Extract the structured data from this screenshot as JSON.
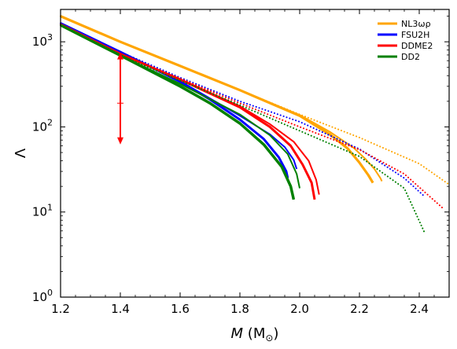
{
  "chart_data": {
    "type": "line",
    "title": "",
    "xlabel_main": "M",
    "xlabel_unit": " (M",
    "xlabel_sub": "⊙",
    "xlabel_close": ")",
    "ylabel": "Λ",
    "xlim": [
      1.2,
      2.5
    ],
    "ylim": [
      1,
      2400
    ],
    "yscale": "log",
    "x_ticks": [
      1.2,
      1.4,
      1.6,
      1.8,
      2.0,
      2.2,
      2.4
    ],
    "x_tick_labels": [
      "1.2",
      "1.4",
      "1.6",
      "1.8",
      "2.0",
      "2.2",
      "2.4"
    ],
    "y_ticks": [
      1,
      10,
      100,
      1000
    ],
    "y_tick_labels": [
      {
        "base": "10",
        "exp": "0"
      },
      {
        "base": "10",
        "exp": "1"
      },
      {
        "base": "10",
        "exp": "2"
      },
      {
        "base": "10",
        "exp": "3"
      }
    ],
    "legend_position": "top-right",
    "legend": [
      {
        "label": "NL3ωρ",
        "color": "#ffa500"
      },
      {
        "label": "FSU2H",
        "color": "#0000ff"
      },
      {
        "label": "DDME2",
        "color": "#ff0000"
      },
      {
        "label": "DD2",
        "color": "#008000"
      }
    ],
    "series": [
      {
        "name": "NL3ωρ",
        "color": "#ffa500",
        "style": "dotted",
        "width": 2,
        "x": [
          1.2,
          1.4,
          1.6,
          1.8,
          2.0,
          2.2,
          2.4,
          2.5
        ],
        "y": [
          2000,
          1000,
          520,
          270,
          140,
          75,
          37,
          21
        ]
      },
      {
        "name": "NL3ωρ",
        "color": "#ffa500",
        "style": "solid",
        "width": 3.2,
        "x": [
          1.2,
          1.4,
          1.6,
          1.8,
          2.0,
          2.1,
          2.16,
          2.2,
          2.23,
          2.245
        ],
        "y": [
          2000,
          1000,
          520,
          270,
          135,
          82,
          56,
          38,
          27,
          22
        ]
      },
      {
        "name": "NL3ωρ",
        "color": "#ffa500",
        "style": "solid",
        "width": 2,
        "x": [
          1.2,
          1.4,
          1.6,
          1.8,
          2.0,
          2.1,
          2.18,
          2.22,
          2.25,
          2.27,
          2.275
        ],
        "y": [
          2000,
          1000,
          520,
          270,
          138,
          88,
          57,
          42,
          32,
          25,
          23
        ]
      },
      {
        "name": "FSU2H",
        "color": "#0000ff",
        "style": "dotted",
        "width": 2,
        "x": [
          1.2,
          1.4,
          1.6,
          1.8,
          2.0,
          2.2,
          2.35,
          2.42
        ],
        "y": [
          1650,
          760,
          380,
          200,
          115,
          55,
          25,
          15
        ]
      },
      {
        "name": "FSU2H",
        "color": "#0000ff",
        "style": "solid",
        "width": 3,
        "x": [
          1.2,
          1.4,
          1.6,
          1.7,
          1.8,
          1.88,
          1.93,
          1.955,
          1.96
        ],
        "y": [
          1650,
          760,
          340,
          210,
          122,
          72,
          44,
          30,
          25
        ]
      },
      {
        "name": "FSU2H",
        "color": "#0000ff",
        "style": "solid",
        "width": 2,
        "x": [
          1.2,
          1.4,
          1.6,
          1.8,
          1.9,
          1.95,
          1.98,
          1.99
        ],
        "y": [
          1650,
          760,
          345,
          135,
          82,
          58,
          41,
          32
        ]
      },
      {
        "name": "DDME2",
        "color": "#ff0000",
        "style": "dotted",
        "width": 2,
        "x": [
          1.2,
          1.4,
          1.6,
          1.8,
          2.0,
          2.2,
          2.35,
          2.48
        ],
        "y": [
          1600,
          720,
          370,
          190,
          100,
          54,
          28,
          11
        ]
      },
      {
        "name": "DDME2",
        "color": "#ff0000",
        "style": "solid",
        "width": 3,
        "x": [
          1.2,
          1.4,
          1.6,
          1.8,
          1.9,
          1.97,
          2.01,
          2.04,
          2.05
        ],
        "y": [
          1600,
          720,
          360,
          170,
          100,
          60,
          36,
          22,
          14
        ]
      },
      {
        "name": "DDME2",
        "color": "#ff0000",
        "style": "solid",
        "width": 2,
        "x": [
          1.2,
          1.4,
          1.6,
          1.8,
          1.9,
          1.98,
          2.03,
          2.055,
          2.065
        ],
        "y": [
          1600,
          720,
          365,
          175,
          108,
          67,
          40,
          24,
          16
        ]
      },
      {
        "name": "DD2",
        "color": "#008000",
        "style": "dotted",
        "width": 2,
        "x": [
          1.2,
          1.4,
          1.6,
          1.8,
          2.0,
          2.2,
          2.35,
          2.42
        ],
        "y": [
          1570,
          690,
          350,
          180,
          90,
          45,
          19,
          5.5
        ]
      },
      {
        "name": "DD2",
        "color": "#008000",
        "style": "solid",
        "width": 3.5,
        "x": [
          1.2,
          1.4,
          1.6,
          1.7,
          1.8,
          1.88,
          1.94,
          1.97,
          1.98
        ],
        "y": [
          1570,
          690,
          300,
          190,
          110,
          62,
          34,
          20,
          14
        ]
      },
      {
        "name": "DD2",
        "color": "#008000",
        "style": "solid",
        "width": 2,
        "x": [
          1.2,
          1.4,
          1.6,
          1.8,
          1.9,
          1.96,
          1.99,
          2.0
        ],
        "y": [
          1570,
          690,
          320,
          140,
          80,
          48,
          28,
          19
        ]
      }
    ],
    "error_bar": {
      "x": 1.4,
      "y": 190,
      "y_upper": 720,
      "y_lower": 65,
      "color": "#ff0000"
    }
  }
}
